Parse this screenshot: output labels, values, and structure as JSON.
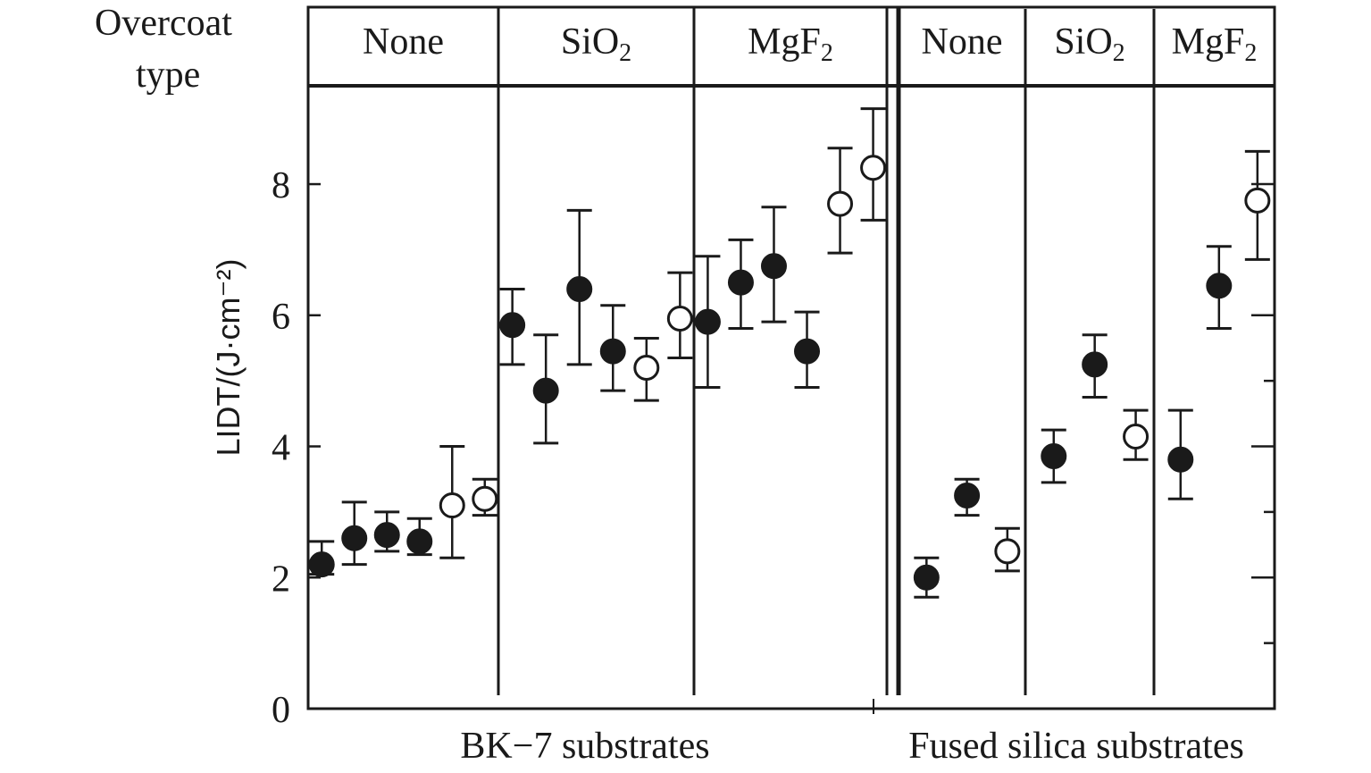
{
  "chart_data": {
    "type": "scatter",
    "ylabel": "LIDT/(J·cm⁻²)",
    "ylim": [
      0,
      9.5
    ],
    "yticks": [
      0,
      2,
      4,
      6,
      8
    ],
    "grid": false,
    "header_label": [
      "Overcoat",
      "type"
    ],
    "substrate_groups": [
      {
        "label": "BK−7 substrates",
        "panels": [
          {
            "overcoat": "None",
            "sub": "",
            "points": [
              {
                "value": 2.2,
                "low": 2.05,
                "high": 2.55,
                "marker": "filled"
              },
              {
                "value": 2.6,
                "low": 2.2,
                "high": 3.15,
                "marker": "filled"
              },
              {
                "value": 2.65,
                "low": 2.4,
                "high": 3.0,
                "marker": "filled"
              },
              {
                "value": 2.55,
                "low": 2.35,
                "high": 2.9,
                "marker": "filled"
              },
              {
                "value": 3.1,
                "low": 2.3,
                "high": 4.0,
                "marker": "open"
              },
              {
                "value": 3.2,
                "low": 2.95,
                "high": 3.5,
                "marker": "open"
              }
            ]
          },
          {
            "overcoat": "SiO",
            "sub": "2",
            "points": [
              {
                "value": 5.85,
                "low": 5.25,
                "high": 6.4,
                "marker": "filled"
              },
              {
                "value": 4.85,
                "low": 4.05,
                "high": 5.7,
                "marker": "filled"
              },
              {
                "value": 6.4,
                "low": 5.25,
                "high": 7.6,
                "marker": "filled"
              },
              {
                "value": 5.45,
                "low": 4.85,
                "high": 6.15,
                "marker": "filled"
              },
              {
                "value": 5.2,
                "low": 4.7,
                "high": 5.65,
                "marker": "open"
              },
              {
                "value": 5.95,
                "low": 5.35,
                "high": 6.65,
                "marker": "open"
              }
            ]
          },
          {
            "overcoat": "MgF",
            "sub": "2",
            "points": [
              {
                "value": 5.9,
                "low": 4.9,
                "high": 6.9,
                "marker": "filled"
              },
              {
                "value": 6.5,
                "low": 5.8,
                "high": 7.15,
                "marker": "filled"
              },
              {
                "value": 6.75,
                "low": 5.9,
                "high": 7.65,
                "marker": "filled"
              },
              {
                "value": 5.45,
                "low": 4.9,
                "high": 6.05,
                "marker": "filled"
              },
              {
                "value": 7.7,
                "low": 6.95,
                "high": 8.55,
                "marker": "open"
              },
              {
                "value": 8.25,
                "low": 7.45,
                "high": 9.15,
                "marker": "open"
              }
            ]
          }
        ]
      },
      {
        "label": "Fused silica substrates",
        "panels": [
          {
            "overcoat": "None",
            "sub": "",
            "points": [
              {
                "value": 2.0,
                "low": 1.7,
                "high": 2.3,
                "marker": "filled"
              },
              {
                "value": 3.25,
                "low": 2.95,
                "high": 3.5,
                "marker": "filled"
              },
              {
                "value": 2.4,
                "low": 2.1,
                "high": 2.75,
                "marker": "open"
              }
            ]
          },
          {
            "overcoat": "SiO",
            "sub": "2",
            "points": [
              {
                "value": 3.85,
                "low": 3.45,
                "high": 4.25,
                "marker": "filled"
              },
              {
                "value": 5.25,
                "low": 4.75,
                "high": 5.7,
                "marker": "filled"
              },
              {
                "value": 4.15,
                "low": 3.8,
                "high": 4.55,
                "marker": "open"
              }
            ]
          },
          {
            "overcoat": "MgF",
            "sub": "2",
            "points": [
              {
                "value": 3.8,
                "low": 3.2,
                "high": 4.55,
                "marker": "filled"
              },
              {
                "value": 6.45,
                "low": 5.8,
                "high": 7.05,
                "marker": "filled"
              },
              {
                "value": 7.75,
                "low": 6.85,
                "high": 8.5,
                "marker": "open"
              }
            ]
          }
        ]
      }
    ]
  }
}
